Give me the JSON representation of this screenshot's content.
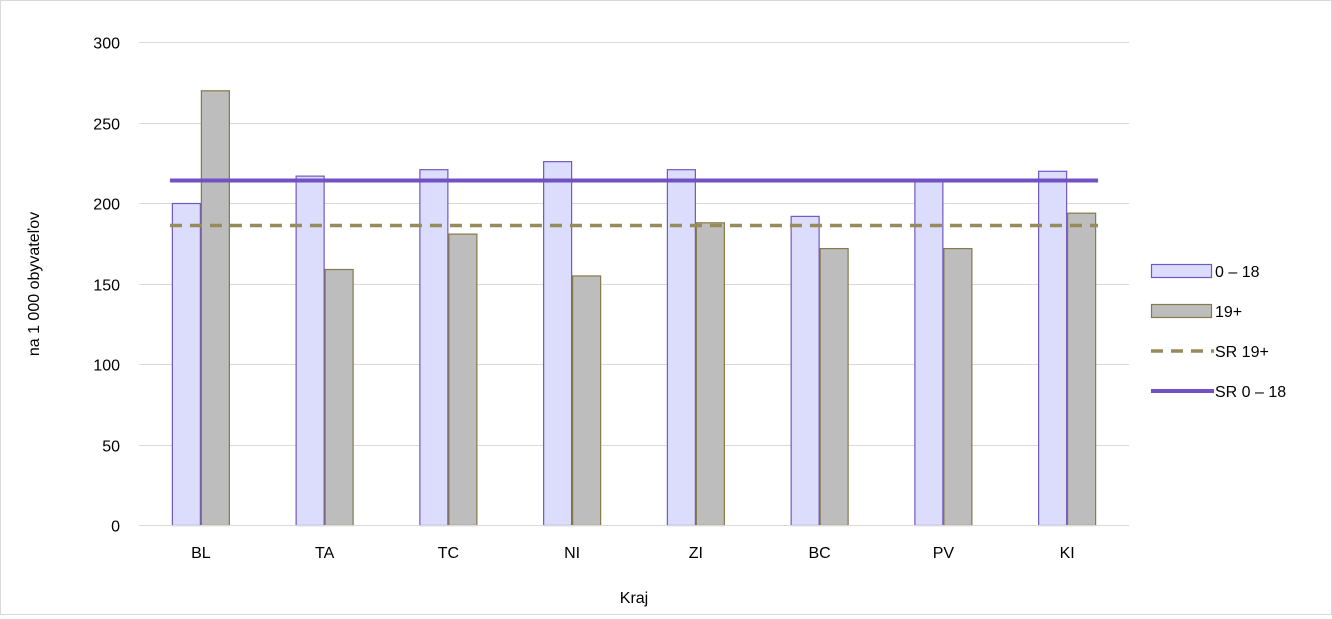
{
  "chart_data": {
    "type": "bar",
    "xlabel": "Kraj",
    "ylabel": "na 1 000 obyvateľov",
    "ylim": [
      0,
      300
    ],
    "yticks": [
      0,
      50,
      100,
      150,
      200,
      250,
      300
    ],
    "grid": true,
    "legend_position": "right",
    "categories": [
      "BL",
      "TA",
      "TC",
      "NI",
      "ZI",
      "BC",
      "PV",
      "KI"
    ],
    "series": [
      {
        "name": "0 – 18",
        "kind": "bar",
        "values": [
          200,
          217,
          221,
          226,
          221,
          192,
          214,
          220
        ],
        "fill": "#dcdcfc",
        "stroke": "#7159bf"
      },
      {
        "name": "19+",
        "kind": "bar",
        "values": [
          270,
          159,
          181,
          155,
          188,
          172,
          172,
          194
        ],
        "fill": "#bdbdbd",
        "stroke": "#857a49"
      },
      {
        "name": "SR 19+",
        "kind": "reference-line",
        "value": 186,
        "stroke": "#958b5c",
        "dashed": true
      },
      {
        "name": "SR 0 – 18",
        "kind": "reference-line",
        "value": 214,
        "stroke": "#7151c4",
        "dashed": false
      }
    ]
  }
}
